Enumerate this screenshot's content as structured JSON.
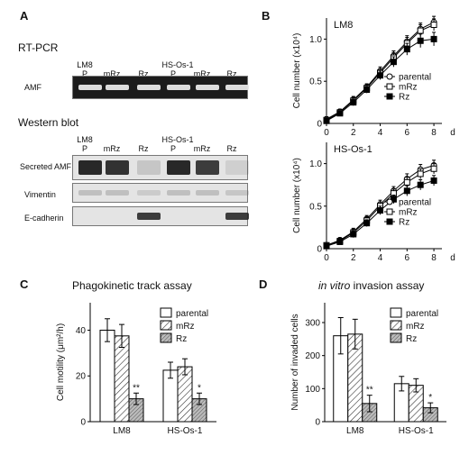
{
  "panelA": {
    "letter": "A",
    "rtpcr_title": "RT-PCR",
    "western_title": "Western blot",
    "lane_groups": [
      "LM8",
      "HS-Os-1"
    ],
    "lanes": [
      "P",
      "mRz",
      "Rz",
      "P",
      "mRz",
      "Rz"
    ],
    "rtpcr_rows": [
      "AMF"
    ],
    "western_rows": [
      "Secreted AMF",
      "Vimentin",
      "E-cadherin"
    ],
    "gel_colors": {
      "rtpcr_bg": "#1c1c1c",
      "rtpcr_band": "#e8e8e8",
      "wb_bg": "#e4e4e4",
      "wb_band": "#1e1e1e"
    },
    "bands": {
      "rtpcr_AMF": [
        0.95,
        0.95,
        0.95,
        0.95,
        0.95,
        0.95
      ],
      "secreted_AMF": [
        0.95,
        0.9,
        0.15,
        0.95,
        0.85,
        0.1
      ],
      "vimentin": [
        0.3,
        0.3,
        0.2,
        0.3,
        0.3,
        0.25
      ],
      "e_cadherin": [
        0,
        0,
        0.85,
        0,
        0,
        0.85
      ]
    }
  },
  "chart_data": [
    {
      "id": "B-top",
      "letter": "B",
      "type": "line",
      "inset_label": "LM8",
      "ylabel": "Cell number (x10⁴)",
      "xlabel": "",
      "x_unit": "d",
      "xlim": [
        0,
        8.6
      ],
      "ylim": [
        0,
        1.25
      ],
      "xticks": [
        "0",
        "2",
        "4",
        "6",
        "8"
      ],
      "yticks": [
        "0",
        "0.5",
        "1.0"
      ],
      "x": [
        0,
        1,
        2,
        3,
        4,
        5,
        6,
        7,
        8
      ],
      "series": [
        {
          "name": "parental",
          "marker": "circle-open",
          "values": [
            0.05,
            0.14,
            0.28,
            0.43,
            0.62,
            0.8,
            0.97,
            1.12,
            1.2
          ],
          "err": [
            0.03,
            0.03,
            0.04,
            0.04,
            0.05,
            0.06,
            0.07,
            0.07,
            0.07
          ]
        },
        {
          "name": "mRz",
          "marker": "square-open",
          "values": [
            0.04,
            0.13,
            0.27,
            0.42,
            0.6,
            0.78,
            0.95,
            1.1,
            1.17
          ],
          "err": [
            0.03,
            0.03,
            0.04,
            0.04,
            0.05,
            0.06,
            0.07,
            0.07,
            0.07
          ]
        },
        {
          "name": "Rz",
          "marker": "square-filled",
          "values": [
            0.03,
            0.12,
            0.25,
            0.4,
            0.57,
            0.73,
            0.88,
            0.98,
            1.0
          ],
          "err": [
            0.03,
            0.03,
            0.04,
            0.04,
            0.05,
            0.06,
            0.07,
            0.08,
            0.08
          ]
        }
      ]
    },
    {
      "id": "B-bottom",
      "letter": "",
      "type": "line",
      "inset_label": "HS-Os-1",
      "ylabel": "Cell number (x10⁴)",
      "xlabel": "",
      "x_unit": "d",
      "xlim": [
        0,
        8.6
      ],
      "ylim": [
        0,
        1.25
      ],
      "xticks": [
        "0",
        "2",
        "4",
        "6",
        "8"
      ],
      "yticks": [
        "0",
        "0.5",
        "1.0"
      ],
      "x": [
        0,
        1,
        2,
        3,
        4,
        5,
        6,
        7,
        8
      ],
      "series": [
        {
          "name": "parental",
          "marker": "circle-open",
          "values": [
            0.04,
            0.1,
            0.2,
            0.35,
            0.52,
            0.68,
            0.82,
            0.93,
            0.98
          ],
          "err": [
            0.03,
            0.03,
            0.04,
            0.04,
            0.05,
            0.05,
            0.06,
            0.06,
            0.06
          ]
        },
        {
          "name": "mRz",
          "marker": "square-open",
          "values": [
            0.04,
            0.09,
            0.19,
            0.33,
            0.5,
            0.65,
            0.78,
            0.88,
            0.94
          ],
          "err": [
            0.03,
            0.03,
            0.04,
            0.04,
            0.05,
            0.05,
            0.06,
            0.06,
            0.06
          ]
        },
        {
          "name": "Rz",
          "marker": "square-filled",
          "values": [
            0.03,
            0.08,
            0.17,
            0.3,
            0.45,
            0.58,
            0.68,
            0.75,
            0.8
          ],
          "err": [
            0.03,
            0.03,
            0.04,
            0.04,
            0.05,
            0.05,
            0.06,
            0.06,
            0.06
          ]
        }
      ]
    },
    {
      "id": "C",
      "letter": "C",
      "type": "bar",
      "title": "Phagokinetic track assay",
      "ylabel": "Cell motility (μm²/h)",
      "xlabel": "",
      "ylim": [
        0,
        52
      ],
      "yticks": [
        "0",
        "20",
        "40"
      ],
      "categories": [
        "LM8",
        "HS-Os-1"
      ],
      "series": [
        {
          "name": "parental",
          "fill": "white",
          "values": [
            40,
            22.5
          ],
          "err": [
            5,
            3.5
          ]
        },
        {
          "name": "mRz",
          "fill": "hatch",
          "values": [
            37.5,
            24
          ],
          "err": [
            5,
            3.5
          ]
        },
        {
          "name": "Rz",
          "fill": "hatch-fine",
          "values": [
            10,
            10
          ],
          "err": [
            2.5,
            2.5
          ]
        }
      ],
      "annotations": [
        [
          "**",
          "*"
        ]
      ]
    },
    {
      "id": "D",
      "letter": "D",
      "type": "bar",
      "title": "in vitro invasion assay",
      "title_italic": "in vitro",
      "ylabel": "Number of invaded cells",
      "xlabel": "",
      "ylim": [
        0,
        360
      ],
      "yticks": [
        "0",
        "100",
        "200",
        "300"
      ],
      "categories": [
        "LM8",
        "HS-Os-1"
      ],
      "series": [
        {
          "name": "parental",
          "fill": "white",
          "values": [
            260,
            115
          ],
          "err": [
            55,
            22
          ]
        },
        {
          "name": "mRz",
          "fill": "hatch",
          "values": [
            265,
            110
          ],
          "err": [
            45,
            20
          ]
        },
        {
          "name": "Rz",
          "fill": "hatch-fine",
          "values": [
            55,
            42
          ],
          "err": [
            25,
            15
          ]
        }
      ],
      "annotations": [
        [
          "**",
          "*"
        ]
      ]
    }
  ]
}
